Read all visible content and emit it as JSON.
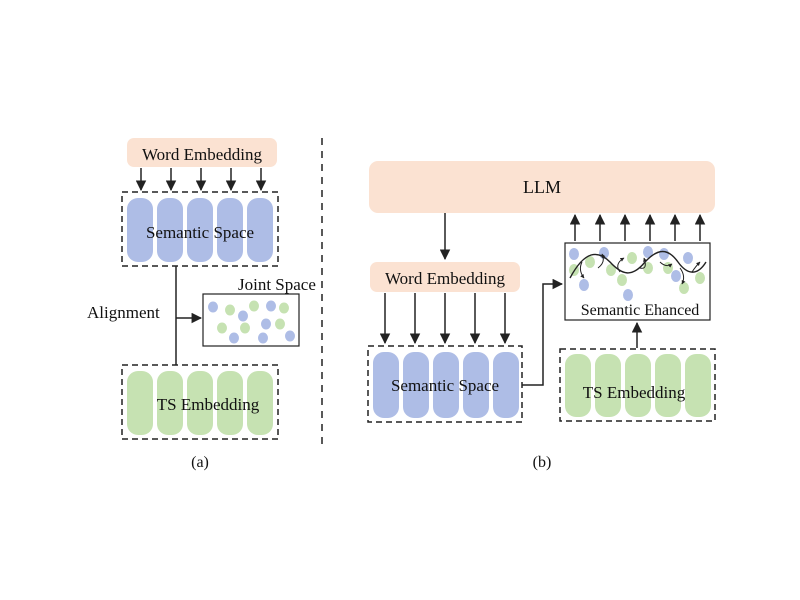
{
  "colors": {
    "peach": "#fbe2d2",
    "blue": "#aebde6",
    "green": "#c6e2b2",
    "line": "#222222"
  },
  "panel_a": {
    "word_embedding": "Word Embedding",
    "semantic_space": "Semantic Space",
    "joint_space": "Joint Space",
    "alignment": "Alignment",
    "ts_embedding": "TS Embedding",
    "caption": "(a)"
  },
  "panel_b": {
    "llm": "LLM",
    "word_embedding": "Word Embedding",
    "semantic_enhanced": "Semantic Ehanced",
    "semantic_space": "Semantic Space",
    "ts_embedding": "TS Embedding",
    "caption": "(b)"
  }
}
